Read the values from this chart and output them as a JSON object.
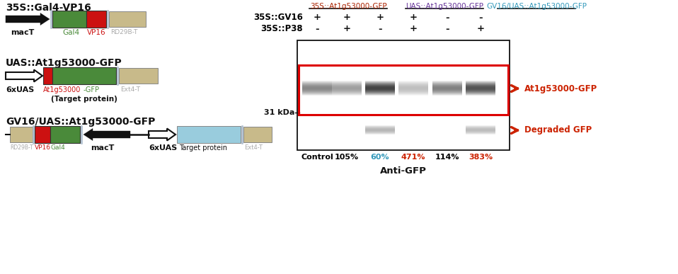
{
  "fig_width": 9.58,
  "fig_height": 3.87,
  "background": "#ffffff",
  "construct1_title": "35S::Gal4-VP16",
  "construct2_title": "UAS::At1g53000-GFP",
  "construct3_title": "GV16/UAS::At1g53000-GFP",
  "col_labels": [
    "35S::At1g53000-GFP",
    "UAS::At1g53000-GFP",
    "GV16/UAS::At1g53000-GFP"
  ],
  "col_label_colors": [
    "#aa2200",
    "#663399",
    "#3399bb"
  ],
  "row1_label": "35S::GV16",
  "row2_label": "35S::P38",
  "lane_labels": [
    "Control",
    "105%",
    "60%",
    "471%",
    "114%",
    "383%"
  ],
  "lane_label_colors": [
    "#000000",
    "#000000",
    "#3399bb",
    "#cc2200",
    "#000000",
    "#cc2200"
  ],
  "anti_label": "Anti-GFP",
  "kda_label": "31 kDa",
  "arrow_label1": "At1g53000-GFP",
  "arrow_label2": "Degraded GFP",
  "arrow_color": "#cc2200",
  "plus_minus_row1": [
    "+",
    "+",
    "+",
    "+",
    "-",
    "-"
  ],
  "plus_minus_row2": [
    "-",
    "+",
    "-",
    "+",
    "-",
    "+"
  ],
  "green_color": "#4a8a3a",
  "red_color": "#cc1111",
  "khaki_color": "#c8ba8a",
  "light_blue_color": "#99ccdd",
  "sep_color": "#aabbcc",
  "white_color": "#ffffff",
  "black_color": "#111111"
}
